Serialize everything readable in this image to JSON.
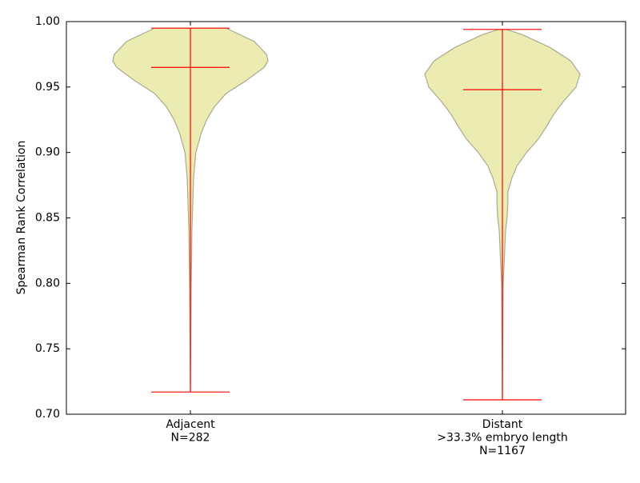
{
  "chart_data": {
    "type": "violin",
    "ylabel": "Spearman Rank Correlation",
    "ylim": [
      0.7,
      1.0
    ],
    "yticks": [
      {
        "value": 0.7,
        "label": "0.70"
      },
      0.75,
      {
        "value": 0.8,
        "label": "0.80"
      },
      0.85,
      {
        "value": 0.9,
        "label": "0.90"
      },
      0.95,
      {
        "value": 1.0,
        "label": "1.00"
      }
    ],
    "fill_color": "#ebebb2",
    "edge_color": "#a8ab8e",
    "line_color": "#ff0000",
    "categories": [
      [
        "Adjacent",
        "N=282"
      ],
      [
        "Distant",
        ">33.3% embryo length",
        "N=1167"
      ]
    ],
    "violins": [
      {
        "min": 0.717,
        "max": 0.995,
        "median": 0.965,
        "density": {
          "y": [
            0.717,
            0.76,
            0.8,
            0.82,
            0.84,
            0.86,
            0.88,
            0.9,
            0.915,
            0.925,
            0.935,
            0.945,
            0.955,
            0.965,
            0.97,
            0.975,
            0.985,
            0.995
          ],
          "width": [
            0,
            0.005,
            0.01,
            0.015,
            0.02,
            0.03,
            0.04,
            0.07,
            0.14,
            0.21,
            0.31,
            0.46,
            0.72,
            0.95,
            1.0,
            0.98,
            0.82,
            0.46
          ]
        }
      },
      {
        "min": 0.711,
        "max": 0.994,
        "median": 0.948,
        "density": {
          "y": [
            0.711,
            0.76,
            0.8,
            0.82,
            0.84,
            0.85,
            0.86,
            0.87,
            0.88,
            0.89,
            0.9,
            0.91,
            0.92,
            0.93,
            0.94,
            0.95,
            0.96,
            0.97,
            0.98,
            0.99,
            0.994
          ],
          "width": [
            0,
            0.005,
            0.01,
            0.026,
            0.04,
            0.06,
            0.07,
            0.07,
            0.12,
            0.19,
            0.31,
            0.46,
            0.57,
            0.67,
            0.8,
            0.95,
            1.0,
            0.88,
            0.62,
            0.26,
            0.05
          ]
        }
      }
    ]
  }
}
